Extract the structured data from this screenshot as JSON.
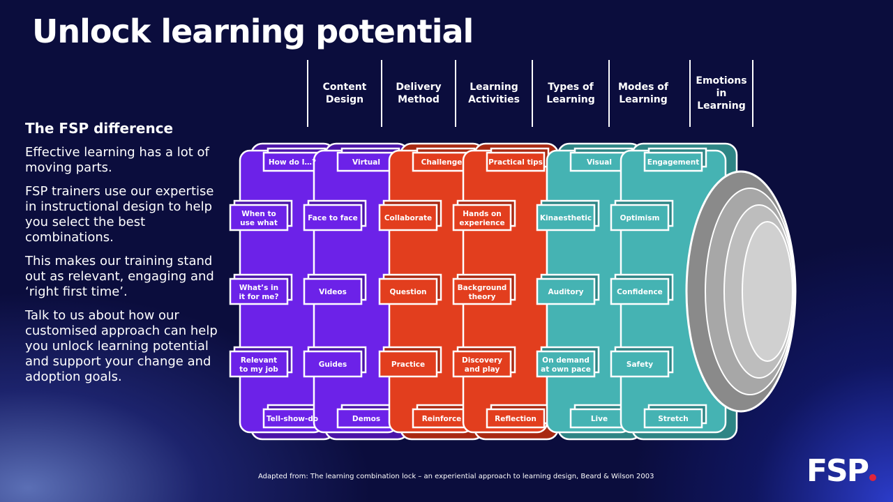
{
  "title": "Unlock learning potential",
  "sidebar": {
    "heading": "The FSP difference",
    "paragraphs": [
      "Effective learning has a lot of moving parts.",
      "FSP trainers use our expertise in instructional design to help you select the best combinations.",
      "This makes our training stand out as relevant, engaging and ‘right first time’.",
      "Talk to us about how our customised approach  can help you unlock learning potential and support your change and adoption goals."
    ]
  },
  "columns": [
    {
      "name": "Content\nDesign",
      "color": "#6c22e8",
      "labels": [
        "How do I…?",
        "When to\nuse what",
        "What’s in\nit for me?",
        "Relevant\nto my job",
        "Tell-show-do"
      ]
    },
    {
      "name": "Delivery\nMethod",
      "color": "#6c22e8",
      "labels": [
        "Virtual",
        "Face to face",
        "Videos",
        "Guides",
        "Demos"
      ]
    },
    {
      "name": "Learning\nActivities",
      "color": "#e23e1e",
      "labels": [
        "Challenge",
        "Collaborate",
        "Question",
        "Practice",
        "Reinforce"
      ]
    },
    {
      "name": "Types of\nLearning",
      "color": "#e23e1e",
      "labels": [
        "Practical tips",
        "Hands on\nexperience",
        "Background\ntheory",
        "Discovery\nand play",
        "Reflection"
      ]
    },
    {
      "name": "Modes of\nLearning",
      "color": "#45b3b3",
      "labels": [
        "Visual",
        "Kinaesthetic",
        "Auditory",
        "On demand\nat own pace",
        "Live"
      ]
    },
    {
      "name": "Emotions\nin\nLearning",
      "color": "#45b3b3",
      "labels": [
        "Engagement",
        "Optimism",
        "Confidence",
        "Safety",
        "Stretch"
      ]
    }
  ],
  "credit": "Adapted from: The learning combination lock – an experiential approach to learning design, Beard & Wilson 2003",
  "logo": "FSP"
}
